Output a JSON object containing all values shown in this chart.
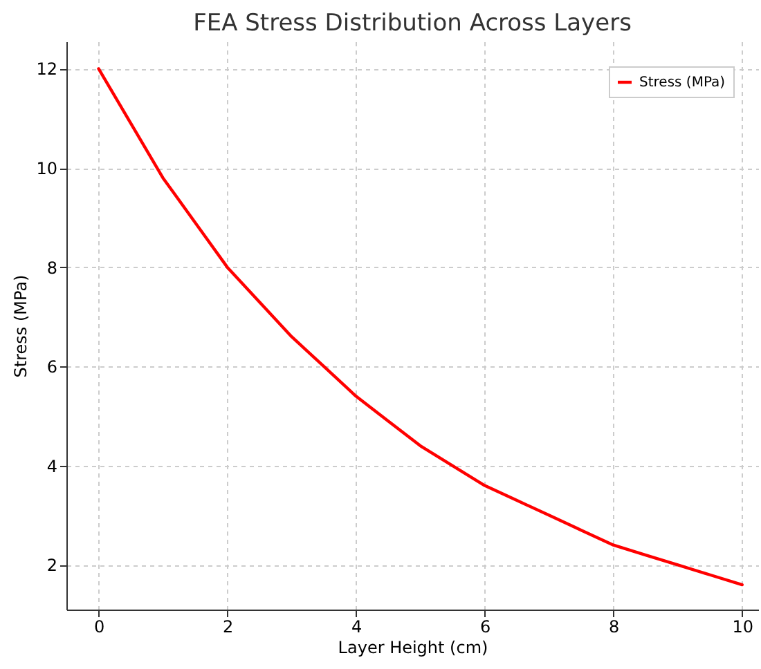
{
  "chart_data": {
    "type": "line",
    "title": "FEA Stress Distribution Across Layers",
    "xlabel": "Layer Height (cm)",
    "ylabel": "Stress (MPa)",
    "x": [
      0,
      0.5,
      1,
      1.5,
      2,
      2.5,
      3,
      3.5,
      4,
      4.5,
      5,
      5.5,
      6,
      6.5,
      7,
      7.5,
      8,
      8.5,
      9,
      9.5,
      10
    ],
    "series": [
      {
        "name": "Stress (MPa)",
        "color": "#ff0000",
        "values": [
          12,
          10.9,
          9.8,
          8.9,
          8.0,
          7.3,
          6.6,
          6.0,
          5.4,
          4.9,
          4.4,
          4.0,
          3.6,
          3.3,
          3.0,
          2.7,
          2.4,
          2.2,
          2.0,
          1.8,
          1.6
        ]
      }
    ],
    "xlim": [
      -0.5,
      10.25
    ],
    "xticks": [
      0,
      2,
      4,
      6,
      8,
      10
    ],
    "ylim": [
      1.1,
      12.55
    ],
    "yticks": [
      2,
      4,
      6,
      8,
      10,
      12
    ],
    "grid": true,
    "legend": "top right",
    "line_style": "solid",
    "marker": "none"
  }
}
